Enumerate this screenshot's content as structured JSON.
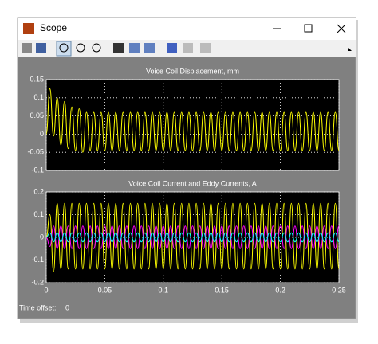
{
  "window": {
    "title": "Scope"
  },
  "chart_data": [
    {
      "type": "line",
      "title": "Voice Coil Displacement, mm",
      "x": [
        0,
        0.003125,
        0.00625,
        0.009375,
        0.0125,
        0.015625,
        0.01875,
        0.021875,
        0.025,
        0.028125,
        0.03125,
        0.034375,
        0.0375,
        0.040625,
        0.04375,
        0.046875,
        0.05,
        0.053125,
        0.05625,
        0.059375,
        0.0625,
        0.065625,
        0.06875,
        0.071875,
        0.075,
        0.078125,
        0.08125,
        0.084375,
        0.0875,
        0.090625,
        0.09375,
        0.096875,
        0.1,
        0.103125,
        0.10625,
        0.109375,
        0.1125,
        0.115625,
        0.11875,
        0.121875,
        0.125,
        0.128125,
        0.13125,
        0.134375,
        0.1375,
        0.140625,
        0.14375,
        0.146875,
        0.15,
        0.153125,
        0.15625,
        0.159375,
        0.1625,
        0.165625,
        0.16875,
        0.171875,
        0.175,
        0.178125,
        0.18125,
        0.184375,
        0.1875,
        0.190625,
        0.19375,
        0.196875,
        0.2,
        0.203125,
        0.20625,
        0.209375,
        0.2125,
        0.215625,
        0.21875,
        0.221875,
        0.225,
        0.228125,
        0.23125,
        0.234375,
        0.2375,
        0.240625,
        0.24375,
        0.246875,
        0.25
      ],
      "series": [
        {
          "color": "#ffff00",
          "values": [
            0,
            0.125,
            -0.005,
            0.1,
            -0.03,
            0.09,
            -0.04,
            0.075,
            -0.045,
            0.07,
            -0.05,
            0.06,
            -0.045,
            0.06,
            -0.045,
            0.06,
            -0.045,
            0.06,
            -0.045,
            0.06,
            -0.045,
            0.06,
            -0.045,
            0.06,
            -0.045,
            0.06,
            -0.045,
            0.06,
            -0.045,
            0.06,
            -0.045,
            0.06,
            -0.045,
            0.06,
            -0.045,
            0.06,
            -0.045,
            0.06,
            -0.045,
            0.06,
            -0.045,
            0.06,
            -0.045,
            0.06,
            -0.045,
            0.06,
            -0.045,
            0.06,
            -0.045,
            0.06,
            -0.045,
            0.06,
            -0.045,
            0.06,
            -0.045,
            0.06,
            -0.045,
            0.06,
            -0.045,
            0.06,
            -0.045,
            0.06,
            -0.045,
            0.06,
            -0.045,
            0.06,
            -0.045,
            0.06,
            -0.045,
            0.06,
            -0.045,
            0.06,
            -0.045,
            0.06,
            -0.045,
            0.06,
            -0.045,
            0.06,
            -0.045,
            0.06,
            -0.045
          ]
        }
      ],
      "xlim": [
        0,
        0.25
      ],
      "xticks": [
        0,
        0.05,
        0.1,
        0.15,
        0.2,
        0.25
      ],
      "ylim": [
        -0.1,
        0.15
      ],
      "yticks": [
        -0.1,
        -0.05,
        0,
        0.05,
        0.1,
        0.15
      ],
      "grid": true
    },
    {
      "type": "line",
      "title": "Voice Coil Current and Eddy Currents, A",
      "x": [
        0,
        0.003125,
        0.00625,
        0.009375,
        0.0125,
        0.015625,
        0.01875,
        0.021875,
        0.025,
        0.028125,
        0.03125,
        0.034375,
        0.0375,
        0.040625,
        0.04375,
        0.046875,
        0.05,
        0.053125,
        0.05625,
        0.059375,
        0.0625,
        0.065625,
        0.06875,
        0.071875,
        0.075,
        0.078125,
        0.08125,
        0.084375,
        0.0875,
        0.090625,
        0.09375,
        0.096875,
        0.1,
        0.103125,
        0.10625,
        0.109375,
        0.1125,
        0.115625,
        0.11875,
        0.121875,
        0.125,
        0.128125,
        0.13125,
        0.134375,
        0.1375,
        0.140625,
        0.14375,
        0.146875,
        0.15,
        0.153125,
        0.15625,
        0.159375,
        0.1625,
        0.165625,
        0.16875,
        0.171875,
        0.175,
        0.178125,
        0.18125,
        0.184375,
        0.1875,
        0.190625,
        0.19375,
        0.196875,
        0.2,
        0.203125,
        0.20625,
        0.209375,
        0.2125,
        0.215625,
        0.21875,
        0.221875,
        0.225,
        0.228125,
        0.23125,
        0.234375,
        0.2375,
        0.240625,
        0.24375,
        0.246875,
        0.25
      ],
      "series": [
        {
          "color": "#ffff00",
          "values": [
            0,
            0.1,
            -0.15,
            0.15,
            -0.14,
            0.15,
            -0.14,
            0.15,
            -0.14,
            0.15,
            -0.14,
            0.15,
            -0.14,
            0.15,
            -0.14,
            0.15,
            -0.14,
            0.15,
            -0.14,
            0.15,
            -0.14,
            0.15,
            -0.14,
            0.15,
            -0.14,
            0.15,
            -0.14,
            0.15,
            -0.14,
            0.15,
            -0.14,
            0.15,
            -0.14,
            0.15,
            -0.14,
            0.15,
            -0.14,
            0.15,
            -0.14,
            0.15,
            -0.14,
            0.15,
            -0.14,
            0.15,
            -0.14,
            0.15,
            -0.14,
            0.15,
            -0.14,
            0.15,
            -0.14,
            0.15,
            -0.14,
            0.15,
            -0.14,
            0.15,
            -0.14,
            0.15,
            -0.14,
            0.15,
            -0.14,
            0.15,
            -0.14,
            0.15,
            -0.14,
            0.15,
            -0.14,
            0.15,
            -0.14,
            0.15,
            -0.14,
            0.15,
            -0.14,
            0.15,
            -0.14,
            0.15,
            -0.14,
            0.15,
            -0.14,
            0.15,
            -0.14
          ]
        },
        {
          "color": "#ff00ff",
          "values": [
            0,
            -0.04,
            0.05,
            -0.05,
            0.05,
            -0.05,
            0.05,
            -0.05,
            0.05,
            -0.05,
            0.05,
            -0.05,
            0.05,
            -0.05,
            0.05,
            -0.05,
            0.05,
            -0.05,
            0.05,
            -0.05,
            0.05,
            -0.05,
            0.05,
            -0.05,
            0.05,
            -0.05,
            0.05,
            -0.05,
            0.05,
            -0.05,
            0.05,
            -0.05,
            0.05,
            -0.05,
            0.05,
            -0.05,
            0.05,
            -0.05,
            0.05,
            -0.05,
            0.05,
            -0.05,
            0.05,
            -0.05,
            0.05,
            -0.05,
            0.05,
            -0.05,
            0.05,
            -0.05,
            0.05,
            -0.05,
            0.05,
            -0.05,
            0.05,
            -0.05,
            0.05,
            -0.05,
            0.05,
            -0.05,
            0.05,
            -0.05,
            0.05,
            -0.05,
            0.05,
            -0.05,
            0.05,
            -0.05,
            0.05,
            -0.05,
            0.05,
            -0.05,
            0.05,
            -0.05,
            0.05,
            -0.05,
            0.05,
            -0.05,
            0.05,
            -0.05,
            0.05
          ]
        },
        {
          "color": "#00ffff",
          "values": [
            0,
            0.02,
            -0.02,
            0.02,
            -0.02,
            0.02,
            -0.02,
            0.02,
            -0.02,
            0.02,
            -0.02,
            0.02,
            -0.02,
            0.02,
            -0.02,
            0.02,
            -0.02,
            0.02,
            -0.02,
            0.02,
            -0.02,
            0.02,
            -0.02,
            0.02,
            -0.02,
            0.02,
            -0.02,
            0.02,
            -0.02,
            0.02,
            -0.02,
            0.02,
            -0.02,
            0.02,
            -0.02,
            0.02,
            -0.02,
            0.02,
            -0.02,
            0.02,
            -0.02,
            0.02,
            -0.02,
            0.02,
            -0.02,
            0.02,
            -0.02,
            0.02,
            -0.02,
            0.02,
            -0.02,
            0.02,
            -0.02,
            0.02,
            -0.02,
            0.02,
            -0.02,
            0.02,
            -0.02,
            0.02,
            -0.02,
            0.02,
            -0.02,
            0.02,
            -0.02,
            0.02,
            -0.02,
            0.02,
            -0.02,
            0.02,
            -0.02,
            0.02,
            -0.02,
            0.02,
            -0.02,
            0.02,
            -0.02,
            0.02,
            -0.02,
            0.02,
            -0.02
          ]
        }
      ],
      "xlim": [
        0,
        0.25
      ],
      "xticks": [
        0,
        0.05,
        0.1,
        0.15,
        0.2,
        0.25
      ],
      "ylim": [
        -0.2,
        0.2
      ],
      "yticks": [
        -0.2,
        -0.1,
        0,
        0.1,
        0.2
      ],
      "grid": true
    }
  ],
  "footer": {
    "label": "Time offset:",
    "value": "0"
  }
}
